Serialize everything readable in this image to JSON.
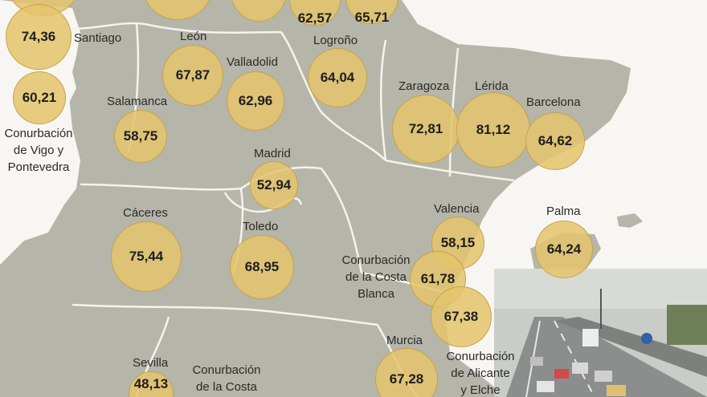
{
  "palette": {
    "sea": "#f7f6f2",
    "land": "#b5b5a9",
    "border": "#f4f3ee",
    "bubble": "#e4c46c",
    "text": "#2a2a2a"
  },
  "map": {
    "places": [
      {
        "id": "top-left-partial",
        "name": "",
        "value": ""
      },
      {
        "id": "top-mid-partial",
        "name": "",
        "value": ""
      },
      {
        "id": "top-mid2-partial",
        "name": "",
        "value": ""
      },
      {
        "id": "top-right-1",
        "name": "",
        "value": "62,57"
      },
      {
        "id": "top-right-2",
        "name": "",
        "value": "65,71"
      },
      {
        "id": "santiago",
        "name": "Santiago",
        "value": "74,36"
      },
      {
        "id": "vigo",
        "name": "Conurbación de Vigo y Pontevedra",
        "value": "60,21"
      },
      {
        "id": "leon",
        "name": "León",
        "value": "67,87"
      },
      {
        "id": "valladolid",
        "name": "Valladolid",
        "value": "62,96"
      },
      {
        "id": "logrono",
        "name": "Logroño",
        "value": "64,04"
      },
      {
        "id": "salamanca",
        "name": "Salamanca",
        "value": "58,75"
      },
      {
        "id": "zaragoza",
        "name": "Zaragoza",
        "value": "72,81"
      },
      {
        "id": "lerida",
        "name": "Lérida",
        "value": "81,12"
      },
      {
        "id": "barcelona",
        "name": "Barcelona",
        "value": "64,62"
      },
      {
        "id": "madrid",
        "name": "Madrid",
        "value": "52,94"
      },
      {
        "id": "caceres",
        "name": "Cáceres",
        "value": "75,44"
      },
      {
        "id": "toledo",
        "name": "Toledo",
        "value": "68,95"
      },
      {
        "id": "valencia",
        "name": "Valencia",
        "value": "58,15"
      },
      {
        "id": "palma",
        "name": "Palma",
        "value": "64,24"
      },
      {
        "id": "costa-blanca",
        "name": "Conurbación de la Costa Blanca",
        "value": "61,78"
      },
      {
        "id": "alicante",
        "name": "Conurbación de Alicante y Elche",
        "value": "67,38"
      },
      {
        "id": "murcia",
        "name": "Murcia",
        "value": "67,28"
      },
      {
        "id": "sevilla",
        "name": "Sevilla",
        "value": "48,13"
      },
      {
        "id": "costa-sol",
        "name": "Conurbación de la Costa",
        "value": ""
      }
    ],
    "labels": {
      "santiago": "Santiago",
      "vigo_1": "Conurbación",
      "vigo_2": "de Vigo y",
      "vigo_3": "Pontevedra",
      "leon": "León",
      "valladolid": "Valladolid",
      "logrono": "Logroño",
      "salamanca": "Salamanca",
      "zaragoza": "Zaragoza",
      "lerida": "Lérida",
      "barcelona": "Barcelona",
      "madrid": "Madrid",
      "caceres": "Cáceres",
      "toledo": "Toledo",
      "valencia": "Valencia",
      "palma": "Palma",
      "cb_1": "Conurbación",
      "cb_2": "de la Costa",
      "cb_3": "Blanca",
      "ae_1": "Conurbación",
      "ae_2": "de Alicante",
      "ae_3": "y Elche",
      "murcia": "Murcia",
      "sevilla": "Sevilla",
      "cs_1": "Conurbación",
      "cs_2": "de la Costa"
    },
    "values": {
      "santiago": "74,36",
      "vigo": "60,21",
      "leon": "67,87",
      "valladolid": "62,96",
      "logrono": "64,04",
      "salamanca": "58,75",
      "zaragoza": "72,81",
      "lerida": "81,12",
      "barcelona": "64,62",
      "madrid": "52,94",
      "caceres": "75,44",
      "toledo": "68,95",
      "valencia": "58,15",
      "palma": "64,24",
      "costa_blanca": "61,78",
      "alicante": "67,38",
      "murcia": "67,28",
      "sevilla": "48,13",
      "top_right_1": "62,57",
      "top_right_2": "65,71"
    }
  }
}
